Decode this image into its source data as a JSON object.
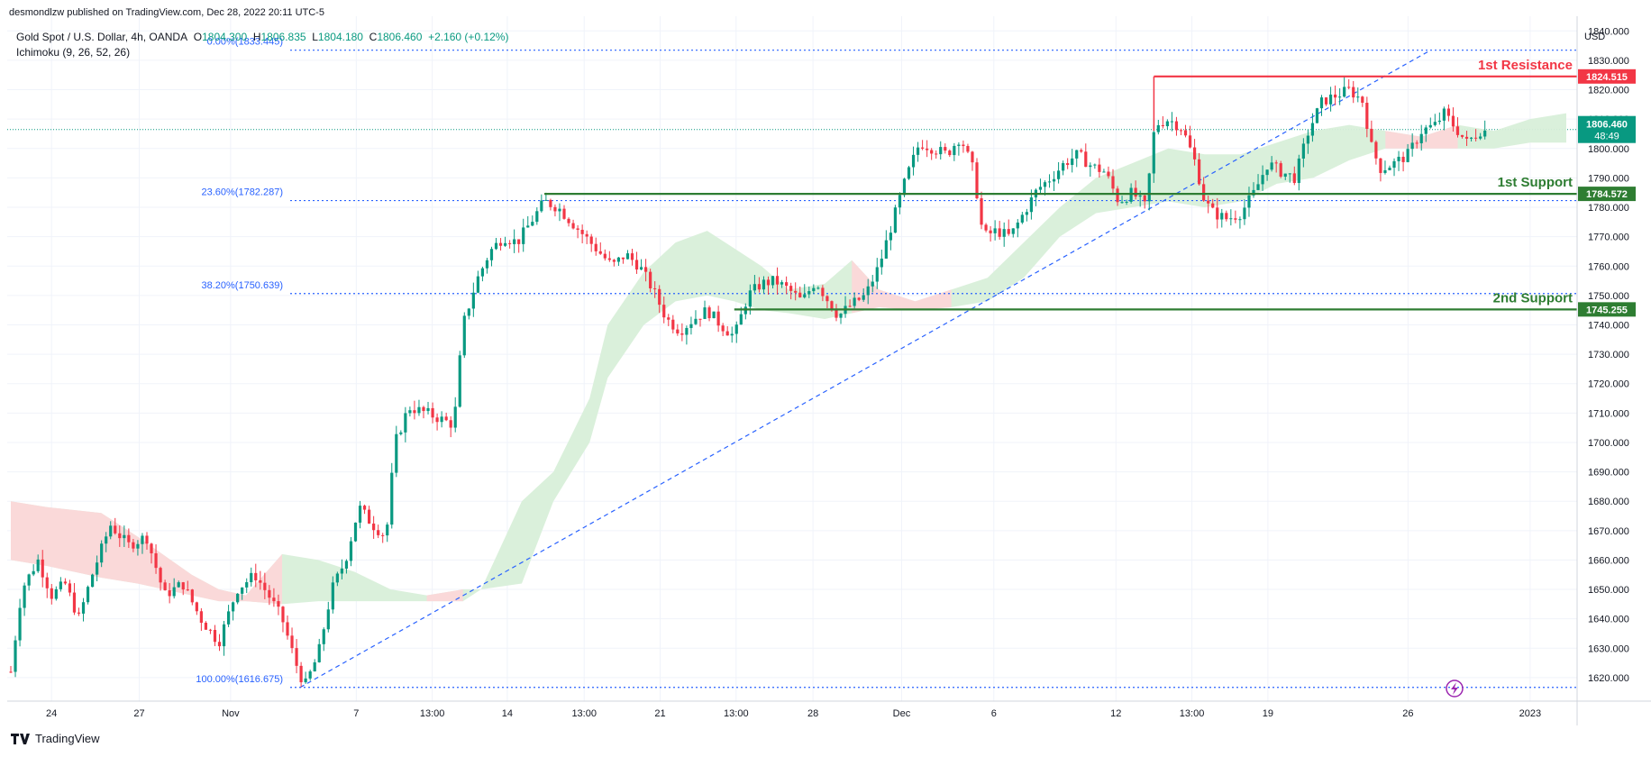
{
  "header": {
    "publisher": "desmondlzw published on TradingView.com, Dec 28, 2022 20:11 UTC-5",
    "symbol": "Gold Spot / U.S. Dollar, 4h, OANDA",
    "o_label": "O",
    "o_value": "1804.300",
    "h_label": "H",
    "h_value": "1806.835",
    "l_label": "L",
    "l_value": "1804.180",
    "c_label": "C",
    "c_value": "1806.460",
    "change": "+2.160 (+0.12%)",
    "indicator": "Ichimoku (9, 26, 52, 26)"
  },
  "footer": {
    "brand": "TradingView"
  },
  "colors": {
    "up": "#089981",
    "down": "#f23645",
    "fib": "#2962ff",
    "support": "#2e7d32",
    "resistance": "#f23645",
    "cloud_bull": "#d8efd9",
    "cloud_bear": "#fcd7d9"
  },
  "chart_data": {
    "type": "candlestick",
    "currency_label": "USD",
    "ylim": [
      1612,
      1845
    ],
    "y_ticks": [
      1620,
      1630,
      1640,
      1650,
      1660,
      1670,
      1680,
      1690,
      1700,
      1710,
      1720,
      1730,
      1740,
      1750,
      1760,
      1770,
      1780,
      1790,
      1800,
      1810,
      1820,
      1830,
      1840
    ],
    "x_ticks": [
      {
        "label": "24",
        "t": 0.045
      },
      {
        "label": "27",
        "t": 0.142
      },
      {
        "label": "Nov",
        "t": 0.243
      },
      {
        "label": "7",
        "t": 0.382
      },
      {
        "label": "13:00",
        "t": 0.466
      },
      {
        "label": "14",
        "t": 0.549
      },
      {
        "label": "13:00",
        "t": 0.634
      },
      {
        "label": "21",
        "t": 0.718
      },
      {
        "label": "13:00",
        "t": 0.802
      },
      {
        "label": "28",
        "t": 0.887
      },
      {
        "label": "Dec",
        "t": 0.985
      },
      {
        "label": "6",
        "t": 1.087
      },
      {
        "label": "12",
        "t": 1.222
      },
      {
        "label": "13:00",
        "t": 1.306
      },
      {
        "label": "19",
        "t": 1.39
      },
      {
        "label": "26",
        "t": 1.545
      },
      {
        "label": "2023",
        "t": 1.68
      }
    ],
    "price_path": [
      [
        0,
        1622
      ],
      [
        0.012,
        1650
      ],
      [
        0.03,
        1660
      ],
      [
        0.045,
        1648
      ],
      [
        0.06,
        1652
      ],
      [
        0.075,
        1640
      ],
      [
        0.09,
        1655
      ],
      [
        0.11,
        1672
      ],
      [
        0.13,
        1665
      ],
      [
        0.15,
        1668
      ],
      [
        0.17,
        1648
      ],
      [
        0.19,
        1652
      ],
      [
        0.21,
        1640
      ],
      [
        0.23,
        1632
      ],
      [
        0.25,
        1650
      ],
      [
        0.27,
        1655
      ],
      [
        0.285,
        1648
      ],
      [
        0.3,
        1640
      ],
      [
        0.315,
        1625
      ],
      [
        0.325,
        1617
      ],
      [
        0.34,
        1628
      ],
      [
        0.355,
        1650
      ],
      [
        0.37,
        1660
      ],
      [
        0.385,
        1678
      ],
      [
        0.4,
        1672
      ],
      [
        0.415,
        1668
      ],
      [
        0.425,
        1700
      ],
      [
        0.44,
        1712
      ],
      [
        0.46,
        1710
      ],
      [
        0.475,
        1708
      ],
      [
        0.49,
        1706
      ],
      [
        0.5,
        1740
      ],
      [
        0.515,
        1755
      ],
      [
        0.53,
        1765
      ],
      [
        0.545,
        1770
      ],
      [
        0.56,
        1768
      ],
      [
        0.575,
        1775
      ],
      [
        0.59,
        1782
      ],
      [
        0.605,
        1780
      ],
      [
        0.62,
        1775
      ],
      [
        0.635,
        1770
      ],
      [
        0.65,
        1765
      ],
      [
        0.665,
        1760
      ],
      [
        0.68,
        1764
      ],
      [
        0.695,
        1760
      ],
      [
        0.71,
        1752
      ],
      [
        0.725,
        1742
      ],
      [
        0.74,
        1738
      ],
      [
        0.755,
        1742
      ],
      [
        0.77,
        1745
      ],
      [
        0.785,
        1740
      ],
      [
        0.8,
        1736
      ],
      [
        0.815,
        1750
      ],
      [
        0.83,
        1754
      ],
      [
        0.845,
        1755
      ],
      [
        0.86,
        1752
      ],
      [
        0.875,
        1748
      ],
      [
        0.89,
        1755
      ],
      [
        0.9,
        1750
      ],
      [
        0.915,
        1743
      ],
      [
        0.93,
        1747
      ],
      [
        0.945,
        1750
      ],
      [
        0.96,
        1760
      ],
      [
        0.975,
        1775
      ],
      [
        0.99,
        1790
      ],
      [
        1.005,
        1802
      ],
      [
        1.02,
        1800
      ],
      [
        1.035,
        1798
      ],
      [
        1.05,
        1804
      ],
      [
        1.065,
        1792
      ],
      [
        1.075,
        1770
      ],
      [
        1.09,
        1772
      ],
      [
        1.105,
        1770
      ],
      [
        1.12,
        1778
      ],
      [
        1.135,
        1786
      ],
      [
        1.15,
        1790
      ],
      [
        1.165,
        1795
      ],
      [
        1.18,
        1798
      ],
      [
        1.195,
        1794
      ],
      [
        1.21,
        1792
      ],
      [
        1.225,
        1782
      ],
      [
        1.24,
        1785
      ],
      [
        1.255,
        1780
      ],
      [
        1.265,
        1808
      ],
      [
        1.28,
        1810
      ],
      [
        1.295,
        1807
      ],
      [
        1.31,
        1795
      ],
      [
        1.32,
        1782
      ],
      [
        1.33,
        1778
      ],
      [
        1.345,
        1776
      ],
      [
        1.36,
        1778
      ],
      [
        1.375,
        1785
      ],
      [
        1.39,
        1795
      ],
      [
        1.405,
        1792
      ],
      [
        1.42,
        1790
      ],
      [
        1.435,
        1806
      ],
      [
        1.45,
        1816
      ],
      [
        1.465,
        1818
      ],
      [
        1.48,
        1820
      ],
      [
        1.495,
        1816
      ],
      [
        1.505,
        1800
      ],
      [
        1.515,
        1793
      ],
      [
        1.53,
        1795
      ],
      [
        1.545,
        1798
      ],
      [
        1.56,
        1806
      ],
      [
        1.575,
        1808
      ],
      [
        1.585,
        1812
      ],
      [
        1.595,
        1808
      ],
      [
        1.61,
        1802
      ],
      [
        1.625,
        1806
      ],
      [
        1.63,
        1806
      ]
    ],
    "fibonacci": [
      {
        "label": "0.00%(1833.445)",
        "price": 1833.445
      },
      {
        "label": "23.60%(1782.287)",
        "price": 1782.287
      },
      {
        "label": "38.20%(1750.639)",
        "price": 1750.639
      },
      {
        "label": "100.00%(1616.675)",
        "price": 1616.675
      }
    ],
    "levels": [
      {
        "name": "1st Resistance",
        "price": 1824.515,
        "label": "1824.515",
        "color": "#f23645",
        "t_start": 1.264
      },
      {
        "name": "1st Support",
        "price": 1784.572,
        "label": "1784.572",
        "color": "#2e7d32",
        "t_start": 0.59
      },
      {
        "name": "2nd Support",
        "price": 1745.255,
        "label": "1745.255",
        "color": "#2e7d32",
        "t_start": 0.8
      }
    ],
    "trendline": {
      "from": [
        0.32,
        1616.675
      ],
      "to": [
        1.57,
        1833.445
      ]
    },
    "last_price": {
      "value": "1806.460",
      "countdown": "48:49",
      "price": 1806.46
    },
    "cloud": {
      "top": [
        [
          0,
          1680
        ],
        [
          0.04,
          1678
        ],
        [
          0.1,
          1676
        ],
        [
          0.14,
          1668
        ],
        [
          0.2,
          1655
        ],
        [
          0.23,
          1650
        ],
        [
          0.26,
          1648
        ],
        [
          0.3,
          1662
        ],
        [
          0.34,
          1660
        ],
        [
          0.38,
          1656
        ],
        [
          0.42,
          1650
        ],
        [
          0.46,
          1648
        ],
        [
          0.5,
          1650
        ],
        [
          0.52,
          1650
        ],
        [
          0.565,
          1680
        ],
        [
          0.6,
          1690
        ],
        [
          0.64,
          1715
        ],
        [
          0.66,
          1740
        ],
        [
          0.7,
          1758
        ],
        [
          0.735,
          1768
        ],
        [
          0.77,
          1772
        ],
        [
          0.8,
          1766
        ],
        [
          0.83,
          1760
        ],
        [
          0.86,
          1752
        ],
        [
          0.9,
          1754
        ],
        [
          0.93,
          1762
        ],
        [
          0.96,
          1752
        ],
        [
          1.0,
          1748
        ],
        [
          1.04,
          1752
        ],
        [
          1.08,
          1756
        ],
        [
          1.12,
          1768
        ],
        [
          1.16,
          1780
        ],
        [
          1.2,
          1790
        ],
        [
          1.24,
          1795
        ],
        [
          1.28,
          1800
        ],
        [
          1.32,
          1798
        ],
        [
          1.36,
          1798
        ],
        [
          1.4,
          1802
        ],
        [
          1.44,
          1806
        ],
        [
          1.48,
          1808
        ],
        [
          1.52,
          1806
        ],
        [
          1.56,
          1804
        ],
        [
          1.6,
          1808
        ],
        [
          1.64,
          1806
        ],
        [
          1.68,
          1810
        ],
        [
          1.72,
          1812
        ]
      ],
      "bottom": [
        [
          0,
          1660
        ],
        [
          0.04,
          1658
        ],
        [
          0.1,
          1654
        ],
        [
          0.14,
          1652
        ],
        [
          0.2,
          1648
        ],
        [
          0.23,
          1646
        ],
        [
          0.26,
          1646
        ],
        [
          0.3,
          1645
        ],
        [
          0.34,
          1646
        ],
        [
          0.38,
          1646
        ],
        [
          0.42,
          1646
        ],
        [
          0.46,
          1646
        ],
        [
          0.5,
          1646
        ],
        [
          0.52,
          1650
        ],
        [
          0.565,
          1652
        ],
        [
          0.6,
          1680
        ],
        [
          0.64,
          1700
        ],
        [
          0.66,
          1722
        ],
        [
          0.7,
          1740
        ],
        [
          0.735,
          1748
        ],
        [
          0.77,
          1750
        ],
        [
          0.8,
          1748
        ],
        [
          0.83,
          1745
        ],
        [
          0.86,
          1744
        ],
        [
          0.9,
          1742
        ],
        [
          0.93,
          1744
        ],
        [
          0.96,
          1746
        ],
        [
          1.0,
          1745
        ],
        [
          1.04,
          1746
        ],
        [
          1.08,
          1748
        ],
        [
          1.12,
          1756
        ],
        [
          1.16,
          1770
        ],
        [
          1.2,
          1778
        ],
        [
          1.24,
          1780
        ],
        [
          1.28,
          1782
        ],
        [
          1.32,
          1780
        ],
        [
          1.36,
          1782
        ],
        [
          1.4,
          1788
        ],
        [
          1.44,
          1790
        ],
        [
          1.48,
          1796
        ],
        [
          1.52,
          1800
        ],
        [
          1.56,
          1800
        ],
        [
          1.6,
          1800
        ],
        [
          1.64,
          1800
        ],
        [
          1.68,
          1802
        ],
        [
          1.72,
          1802
        ]
      ],
      "bear_ranges": [
        [
          0,
          0.3
        ],
        [
          0.44,
          0.5
        ],
        [
          0.91,
          1.07
        ],
        [
          1.5,
          1.6
        ]
      ]
    }
  }
}
